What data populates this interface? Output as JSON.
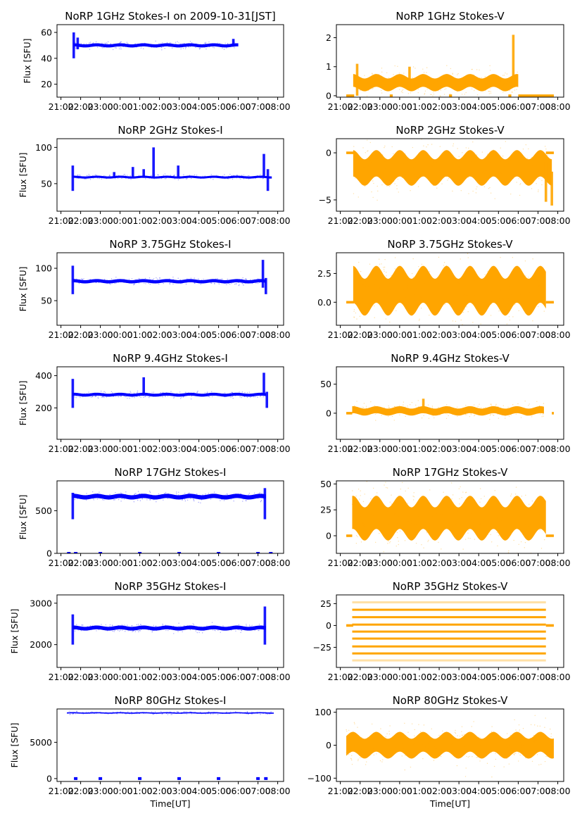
{
  "figure": {
    "x_tick_labels": [
      "21:00",
      "22:00",
      "23:00",
      "00:00",
      "01:00",
      "02:00",
      "03:00",
      "04:00",
      "05:00",
      "06:00",
      "07:00",
      "08:00"
    ],
    "x_label": "Time[UT]",
    "y_label": "Flux [SFU]",
    "colors": {
      "stokes_i": "#0000ff",
      "stokes_v": "#ffa500"
    }
  },
  "chart_data": [
    {
      "type": "scatter",
      "title": "NoRP 1GHz Stokes-I on 2009-10-31[JST]",
      "ylabel": "Flux [SFU]",
      "xlabel": "",
      "ylim": [
        10,
        66
      ],
      "yticks": [
        20,
        40,
        60
      ],
      "ytick_labels": [
        "20",
        "40",
        "60"
      ],
      "x_start_hour": 21.65,
      "x_end_hour": 30.0,
      "baseline": 50,
      "spread": 1.2,
      "features": [
        {
          "t": 21.65,
          "min": 40,
          "max": 60
        },
        {
          "t": 21.85,
          "min": 47,
          "max": 56
        },
        {
          "t": 29.75,
          "min": 49,
          "max": 55
        }
      ],
      "series_color": "stokes_i"
    },
    {
      "type": "scatter",
      "title": "NoRP 1GHz Stokes-V",
      "ylabel": "",
      "xlabel": "",
      "ylim": [
        -0.05,
        2.45
      ],
      "yticks": [
        0,
        1,
        2
      ],
      "ytick_labels": [
        "0",
        "1",
        "2"
      ],
      "x_start_hour": 21.65,
      "x_end_hour": 30.0,
      "baseline": 0.45,
      "spread": 0.22,
      "features": [
        {
          "t": 21.85,
          "min": 0,
          "max": 1.1
        },
        {
          "t": 24.5,
          "min": 0.3,
          "max": 1.0
        },
        {
          "t": 29.75,
          "min": 0.3,
          "max": 2.1
        }
      ],
      "zero_segments": [
        [
          21.3,
          21.7
        ],
        [
          23.5,
          23.65
        ],
        [
          26.5,
          26.65
        ],
        [
          29.5,
          29.65
        ],
        [
          30.0,
          31.8
        ]
      ],
      "series_color": "stokes_v"
    },
    {
      "type": "scatter",
      "title": "NoRP 2GHz Stokes-I",
      "ylabel": "Flux [SFU]",
      "xlabel": "",
      "ylim": [
        12,
        112
      ],
      "yticks": [
        50,
        100
      ],
      "ytick_labels": [
        "50",
        "100"
      ],
      "x_start_hour": 21.6,
      "x_end_hour": 31.7,
      "baseline": 59,
      "spread": 1.5,
      "features": [
        {
          "t": 21.6,
          "min": 40,
          "max": 75
        },
        {
          "t": 23.7,
          "min": 58,
          "max": 66
        },
        {
          "t": 24.65,
          "min": 58,
          "max": 73
        },
        {
          "t": 25.2,
          "min": 58,
          "max": 70
        },
        {
          "t": 25.7,
          "min": 58,
          "max": 100
        },
        {
          "t": 26.95,
          "min": 58,
          "max": 75
        },
        {
          "t": 31.3,
          "min": 60,
          "max": 91
        },
        {
          "t": 31.5,
          "min": 40,
          "max": 70
        }
      ],
      "series_color": "stokes_i"
    },
    {
      "type": "scatter",
      "title": "NoRP 2GHz Stokes-V",
      "ylabel": "",
      "xlabel": "",
      "ylim": [
        -6.2,
        1.5
      ],
      "yticks": [
        -5,
        0
      ],
      "ytick_labels": [
        "−5",
        "0"
      ],
      "x_start_hour": 21.65,
      "x_end_hour": 31.7,
      "baseline": -1.6,
      "spread": 1.4,
      "features": [
        {
          "t": 31.4,
          "min": -5.2,
          "max": -1
        },
        {
          "t": 31.7,
          "min": -5.6,
          "max": -2
        }
      ],
      "zero_segments": [
        [
          21.3,
          21.7
        ],
        [
          31.4,
          31.8
        ]
      ],
      "series_color": "stokes_v"
    },
    {
      "type": "scatter",
      "title": "NoRP 3.75GHz Stokes-I",
      "ylabel": "Flux [SFU]",
      "xlabel": "",
      "ylim": [
        12,
        124
      ],
      "yticks": [
        50,
        100
      ],
      "ytick_labels": [
        "50",
        "100"
      ],
      "x_start_hour": 21.6,
      "x_end_hour": 31.4,
      "baseline": 80,
      "spread": 2.5,
      "features": [
        {
          "t": 21.6,
          "min": 60,
          "max": 104
        },
        {
          "t": 31.25,
          "min": 70,
          "max": 113
        },
        {
          "t": 31.4,
          "min": 60,
          "max": 85
        }
      ],
      "series_color": "stokes_i"
    },
    {
      "type": "scatter",
      "title": "NoRP 3.75GHz Stokes-V",
      "ylabel": "",
      "xlabel": "",
      "ylim": [
        -2.0,
        4.3
      ],
      "yticks": [
        0,
        2.5
      ],
      "ytick_labels": [
        "0.0",
        "2.5"
      ],
      "x_start_hour": 21.65,
      "x_end_hour": 31.4,
      "baseline": 1.0,
      "spread": 1.6,
      "features": [],
      "zero_segments": [
        [
          21.3,
          21.7
        ],
        [
          31.4,
          31.8
        ]
      ],
      "series_color": "stokes_v"
    },
    {
      "type": "scatter",
      "title": "NoRP 9.4GHz Stokes-I",
      "ylabel": "Flux [SFU]",
      "xlabel": "",
      "ylim": [
        5,
        455
      ],
      "yticks": [
        200,
        400
      ],
      "ytick_labels": [
        "200",
        "400"
      ],
      "x_start_hour": 21.6,
      "x_end_hour": 31.4,
      "baseline": 282,
      "spread": 9,
      "features": [
        {
          "t": 21.6,
          "min": 200,
          "max": 380
        },
        {
          "t": 25.2,
          "min": 280,
          "max": 390
        },
        {
          "t": 31.3,
          "min": 290,
          "max": 418
        },
        {
          "t": 31.45,
          "min": 200,
          "max": 300
        }
      ],
      "series_color": "stokes_i"
    },
    {
      "type": "scatter",
      "title": "NoRP 9.4GHz Stokes-V",
      "ylabel": "",
      "xlabel": "",
      "ylim": [
        -45,
        80
      ],
      "yticks": [
        0,
        50
      ],
      "ytick_labels": [
        "0",
        "50"
      ],
      "x_start_hour": 21.6,
      "x_end_hour": 31.3,
      "baseline": 4,
      "spread": 6,
      "features": [
        {
          "t": 25.2,
          "min": 0,
          "max": 25
        }
      ],
      "zero_segments": [
        [
          21.3,
          21.6
        ],
        [
          31.7,
          31.8
        ]
      ],
      "series_color": "stokes_v"
    },
    {
      "type": "scatter",
      "title": "NoRP 17GHz Stokes-I",
      "ylabel": "Flux [SFU]",
      "xlabel": "",
      "ylim": [
        0,
        850
      ],
      "yticks": [
        0,
        500
      ],
      "ytick_labels": [
        "0",
        "500"
      ],
      "x_start_hour": 21.6,
      "x_end_hour": 31.4,
      "baseline": 665,
      "spread": 25,
      "features": [
        {
          "t": 21.6,
          "min": 400,
          "max": 710
        },
        {
          "t": 31.35,
          "min": 400,
          "max": 765
        }
      ],
      "zero_points": [
        21.4,
        21.75,
        23.0,
        25.0,
        27.0,
        29.0,
        31.0,
        31.65
      ],
      "series_color": "stokes_i"
    },
    {
      "type": "scatter",
      "title": "NoRP 17GHz Stokes-V",
      "ylabel": "",
      "xlabel": "",
      "ylim": [
        -17,
        53
      ],
      "yticks": [
        0,
        25,
        50
      ],
      "ytick_labels": [
        "0",
        "25",
        "50"
      ],
      "x_start_hour": 21.6,
      "x_end_hour": 31.4,
      "baseline": 17,
      "spread": 16,
      "features": [],
      "zero_segments": [
        [
          21.3,
          21.6
        ],
        [
          31.4,
          31.8
        ]
      ],
      "series_color": "stokes_v"
    },
    {
      "type": "scatter",
      "title": "NoRP 35GHz Stokes-I",
      "ylabel": "Flux [SFU]",
      "xlabel": "",
      "ylim": [
        1450,
        3200
      ],
      "yticks": [
        2000,
        3000
      ],
      "ytick_labels": [
        "2000",
        "3000"
      ],
      "x_start_hour": 21.6,
      "x_end_hour": 31.4,
      "baseline": 2400,
      "spread": 45,
      "features": [
        {
          "t": 21.6,
          "min": 2000,
          "max": 2730
        },
        {
          "t": 31.35,
          "min": 2000,
          "max": 2920
        }
      ],
      "series_color": "stokes_i"
    },
    {
      "type": "scatter",
      "title": "NoRP 35GHz Stokes-V",
      "ylabel": "",
      "xlabel": "",
      "ylim": [
        -48,
        35
      ],
      "yticks": [
        -25,
        0,
        25
      ],
      "ytick_labels": [
        "−25",
        "0",
        "25"
      ],
      "x_start_hour": 21.6,
      "x_end_hour": 31.4,
      "levels": [
        -40,
        -32,
        -24,
        -15,
        -7,
        1,
        9.5,
        18,
        26.5
      ],
      "zero_segments": [
        [
          21.3,
          21.65
        ],
        [
          31.4,
          31.8
        ]
      ],
      "series_color": "stokes_v"
    },
    {
      "type": "scatter",
      "title": "NoRP 80GHz Stokes-I",
      "ylabel": "Flux [SFU]",
      "xlabel": "Time[UT]",
      "ylim": [
        -400,
        9600
      ],
      "yticks": [
        0,
        5000
      ],
      "ytick_labels": [
        "0",
        "5000"
      ],
      "x_start_hour": 21.3,
      "x_end_hour": 31.8,
      "baseline": 9050,
      "spread": 80,
      "features": [],
      "zero_points": [
        21.75,
        23.0,
        25.0,
        27.0,
        29.0,
        31.0,
        31.4
      ],
      "series_color": "stokes_i"
    },
    {
      "type": "scatter",
      "title": "NoRP 80GHz Stokes-V",
      "ylabel": "",
      "xlabel": "Time[UT]",
      "ylim": [
        -110,
        110
      ],
      "yticks": [
        -100,
        0,
        100
      ],
      "ytick_labels": [
        "−100",
        "0",
        "100"
      ],
      "x_start_hour": 21.3,
      "x_end_hour": 31.8,
      "baseline": 0,
      "spread": 30,
      "features": [],
      "series_color": "stokes_v"
    }
  ],
  "x_axis": {
    "xlim_hours": [
      20.8,
      32.3
    ],
    "tick_hours": [
      21,
      22,
      23,
      24,
      25,
      26,
      27,
      28,
      29,
      30,
      31,
      32
    ]
  }
}
